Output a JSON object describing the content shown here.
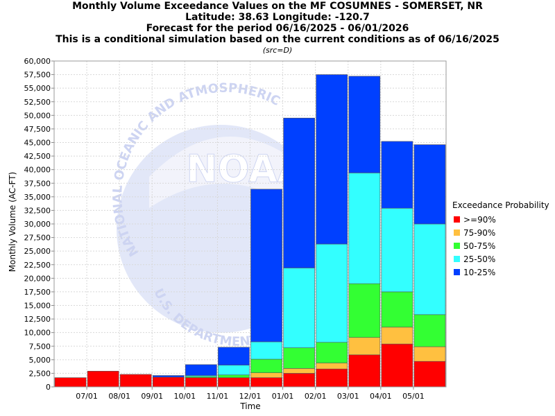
{
  "titles": {
    "line1": "Monthly Volume Exceedance Values on the MF COSUMNES - SOMERSET, NR",
    "line2": "Latitude: 38.63 Longitude: -120.7",
    "line3": "Forecast for the period 06/16/2025 - 06/01/2026",
    "line4": "This is a conditional simulation based on the current conditions as of 06/16/2025",
    "src": "(src=D)"
  },
  "watermark": {
    "logo": "NOAA",
    "arc_top": "NATIONAL OCEANIC AND ATMOSPHERIC",
    "arc_bottom": "U.S. DEPARTMENT OF COMMERCE"
  },
  "legend": {
    "title": "Exceedance Probability",
    "items": [
      {
        "label": ">=90%",
        "color": "#ff0000"
      },
      {
        "label": "75-90%",
        "color": "#ffc040"
      },
      {
        "label": "50-75%",
        "color": "#33ff33"
      },
      {
        "label": "25-50%",
        "color": "#33ffff"
      },
      {
        "label": "10-25%",
        "color": "#0040ff"
      }
    ]
  },
  "chart_data": {
    "type": "bar",
    "stacked": true,
    "xlabel": "Time",
    "ylabel": "Monthly Volume (AC-FT)",
    "ylim": [
      0,
      60000
    ],
    "y_ticks": [
      0,
      2500,
      5000,
      7500,
      10000,
      12500,
      15000,
      17500,
      20000,
      22500,
      25000,
      27500,
      30000,
      32500,
      35000,
      37500,
      40000,
      42500,
      45000,
      47500,
      50000,
      52500,
      55000,
      57500,
      60000
    ],
    "y_tick_labels": [
      "0",
      "2,500",
      "5,000",
      "7,500",
      "10,000",
      "12,500",
      "15,000",
      "17,500",
      "20,000",
      "22,500",
      "25,000",
      "27,500",
      "30,000",
      "32,500",
      "35,000",
      "37,500",
      "40,000",
      "42,500",
      "45,000",
      "47,500",
      "50,000",
      "52,500",
      "55,000",
      "57,500",
      "60,000"
    ],
    "x_tick_labels": [
      "07/01",
      "08/01",
      "09/01",
      "10/01",
      "11/01",
      "12/01",
      "01/01",
      "02/01",
      "03/01",
      "04/01",
      "05/01"
    ],
    "grid": true,
    "series_levels": [
      ">=90%",
      "75-90%",
      "50-75%",
      "25-50%",
      "10-25%"
    ],
    "bars_cumulative_top": [
      [
        1700,
        1700,
        1700,
        1700,
        1700
      ],
      [
        2900,
        2900,
        2900,
        2900,
        2900
      ],
      [
        2300,
        2300,
        2300,
        2300,
        2300
      ],
      [
        1800,
        1800,
        1800,
        1800,
        2100
      ],
      [
        1700,
        1700,
        1900,
        2100,
        4100
      ],
      [
        1700,
        1700,
        2200,
        4000,
        7300
      ],
      [
        1700,
        2600,
        5100,
        8300,
        36400
      ],
      [
        2500,
        3400,
        7200,
        21900,
        49500
      ],
      [
        3300,
        4400,
        8200,
        26300,
        57500
      ],
      [
        5900,
        9100,
        19000,
        39400,
        57200
      ],
      [
        7900,
        11000,
        17500,
        32900,
        45200
      ],
      [
        4700,
        7400,
        13300,
        30000,
        44600
      ]
    ]
  }
}
